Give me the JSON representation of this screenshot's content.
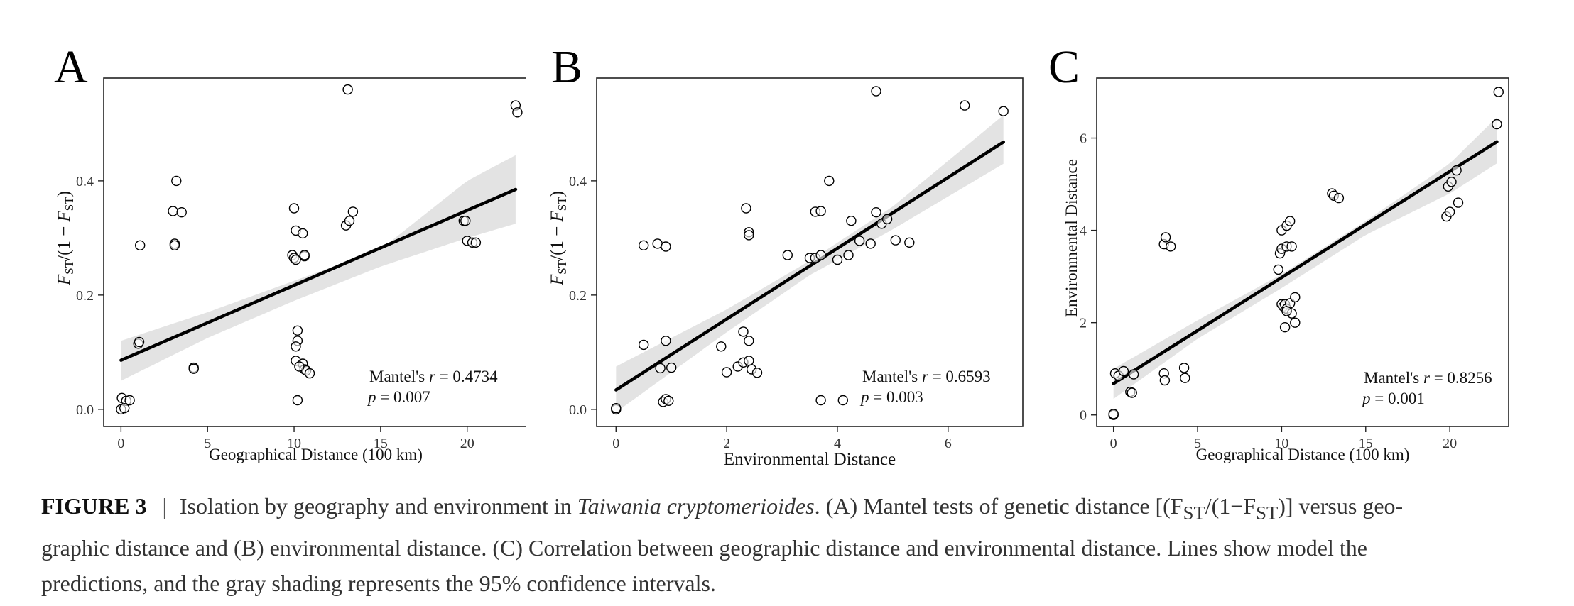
{
  "figure": {
    "panels": [
      {
        "letter": "A"
      },
      {
        "letter": "B"
      },
      {
        "letter": "C"
      }
    ]
  },
  "chart_data": [
    {
      "type": "scatter",
      "panel": "A",
      "xlabel": "Geographical Distance (100 km)",
      "ylabel": "F_ST/(1 − F_ST)",
      "xlim": [
        -1,
        23.5
      ],
      "ylim": [
        -0.03,
        0.58
      ],
      "xticks": [
        0,
        5,
        10,
        15,
        20
      ],
      "yticks": [
        0.0,
        0.2,
        0.4
      ],
      "ytick_labels": [
        "0.0",
        "0.2",
        "0.4"
      ],
      "grid": false,
      "annotation": {
        "line1_prefix": "Mantel's ",
        "line1_var": "r",
        "line1_value": " = 0.4734",
        "line2_var": "p",
        "line2_value": " = 0.007"
      },
      "fit": {
        "x": [
          0,
          22.8
        ],
        "y": [
          0.086,
          0.385
        ]
      },
      "ci_band": {
        "x": [
          0,
          5,
          10,
          15,
          20,
          22.8
        ],
        "lower": [
          0.05,
          0.125,
          0.19,
          0.25,
          0.3,
          0.325
        ],
        "upper": [
          0.12,
          0.17,
          0.225,
          0.28,
          0.4,
          0.445
        ]
      },
      "points": [
        [
          0,
          0.0
        ],
        [
          0.05,
          0.02
        ],
        [
          0.3,
          0.015
        ],
        [
          0.5,
          0.016
        ],
        [
          0.2,
          0.002
        ],
        [
          1.0,
          0.115
        ],
        [
          1.05,
          0.118
        ],
        [
          1.1,
          0.287
        ],
        [
          3.0,
          0.347
        ],
        [
          3.1,
          0.29
        ],
        [
          3.1,
          0.287
        ],
        [
          3.2,
          0.4
        ],
        [
          3.5,
          0.345
        ],
        [
          4.2,
          0.073
        ],
        [
          4.2,
          0.071
        ],
        [
          10.0,
          0.352
        ],
        [
          10.1,
          0.313
        ],
        [
          10.5,
          0.308
        ],
        [
          9.9,
          0.27
        ],
        [
          10.0,
          0.265
        ],
        [
          10.1,
          0.262
        ],
        [
          10.6,
          0.268
        ],
        [
          10.6,
          0.27
        ],
        [
          10.2,
          0.138
        ],
        [
          10.2,
          0.12
        ],
        [
          10.1,
          0.11
        ],
        [
          10.1,
          0.085
        ],
        [
          10.5,
          0.08
        ],
        [
          10.6,
          0.07
        ],
        [
          10.7,
          0.068
        ],
        [
          10.9,
          0.063
        ],
        [
          10.3,
          0.075
        ],
        [
          10.2,
          0.016
        ],
        [
          13.0,
          0.322
        ],
        [
          13.2,
          0.33
        ],
        [
          13.4,
          0.346
        ],
        [
          13.1,
          0.56
        ],
        [
          19.8,
          0.33
        ],
        [
          19.9,
          0.33
        ],
        [
          20.0,
          0.295
        ],
        [
          20.3,
          0.292
        ],
        [
          20.5,
          0.292
        ],
        [
          22.8,
          0.532
        ],
        [
          22.9,
          0.52
        ]
      ]
    },
    {
      "type": "scatter",
      "panel": "B",
      "xlabel": "Environmental Distance",
      "ylabel": "F_ST/(1 − F_ST)",
      "xlim": [
        -0.35,
        7.35
      ],
      "ylim": [
        -0.03,
        0.58
      ],
      "xticks": [
        0,
        2,
        4,
        6
      ],
      "yticks": [
        0.0,
        0.2,
        0.4
      ],
      "ytick_labels": [
        "0.0",
        "0.2",
        "0.4"
      ],
      "grid": false,
      "annotation": {
        "line1_prefix": "Mantel's ",
        "line1_var": "r",
        "line1_value": " = 0.6593",
        "line2_var": "p",
        "line2_value": " = 0.003"
      },
      "fit": {
        "x": [
          0,
          7.0
        ],
        "y": [
          0.034,
          0.468
        ]
      },
      "ci_band": {
        "x": [
          0,
          2,
          3.5,
          5,
          7.0
        ],
        "lower": [
          -0.005,
          0.135,
          0.235,
          0.315,
          0.43
        ],
        "upper": [
          0.075,
          0.175,
          0.26,
          0.355,
          0.515
        ]
      },
      "points": [
        [
          0,
          0.0
        ],
        [
          0,
          0.002
        ],
        [
          0.5,
          0.287
        ],
        [
          0.75,
          0.29
        ],
        [
          0.9,
          0.285
        ],
        [
          0.5,
          0.113
        ],
        [
          0.9,
          0.12
        ],
        [
          1.0,
          0.073
        ],
        [
          0.8,
          0.072
        ],
        [
          0.85,
          0.013
        ],
        [
          0.9,
          0.018
        ],
        [
          0.95,
          0.015
        ],
        [
          1.9,
          0.11
        ],
        [
          2.0,
          0.065
        ],
        [
          2.2,
          0.075
        ],
        [
          2.3,
          0.082
        ],
        [
          2.3,
          0.136
        ],
        [
          2.4,
          0.12
        ],
        [
          2.4,
          0.085
        ],
        [
          2.45,
          0.07
        ],
        [
          2.55,
          0.064
        ],
        [
          2.35,
          0.352
        ],
        [
          2.4,
          0.31
        ],
        [
          2.4,
          0.305
        ],
        [
          3.1,
          0.27
        ],
        [
          3.5,
          0.265
        ],
        [
          3.6,
          0.265
        ],
        [
          3.7,
          0.27
        ],
        [
          3.6,
          0.346
        ],
        [
          3.7,
          0.347
        ],
        [
          3.85,
          0.4
        ],
        [
          3.7,
          0.016
        ],
        [
          4.1,
          0.016
        ],
        [
          4.0,
          0.262
        ],
        [
          4.2,
          0.27
        ],
        [
          4.25,
          0.33
        ],
        [
          4.4,
          0.295
        ],
        [
          4.6,
          0.29
        ],
        [
          4.7,
          0.345
        ],
        [
          4.8,
          0.325
        ],
        [
          4.9,
          0.333
        ],
        [
          5.05,
          0.296
        ],
        [
          5.3,
          0.292
        ],
        [
          4.7,
          0.557
        ],
        [
          6.3,
          0.532
        ],
        [
          7.0,
          0.522
        ]
      ]
    },
    {
      "type": "scatter",
      "panel": "C",
      "xlabel": "Geographical Distance (100 km)",
      "ylabel": "Environmental Distance",
      "xlim": [
        -1,
        23.5
      ],
      "ylim": [
        -0.25,
        7.3
      ],
      "xticks": [
        0,
        5,
        10,
        15,
        20
      ],
      "yticks": [
        0,
        2,
        4,
        6
      ],
      "ytick_labels": [
        "0",
        "2",
        "4",
        "6"
      ],
      "grid": false,
      "annotation": {
        "line1_prefix": "Mantel's ",
        "line1_var": "r",
        "line1_value": " = 0.8256",
        "line2_var": "p",
        "line2_value": " = 0.001"
      },
      "fit": {
        "x": [
          0,
          22.8
        ],
        "y": [
          0.68,
          5.92
        ]
      },
      "ci_band": {
        "x": [
          0,
          5,
          10,
          15,
          20,
          22.8
        ],
        "lower": [
          0.35,
          1.65,
          2.75,
          3.9,
          4.8,
          5.45
        ],
        "upper": [
          1.0,
          2.05,
          3.05,
          4.2,
          5.45,
          6.45
        ]
      },
      "points": [
        [
          0,
          0.0
        ],
        [
          0,
          0.02
        ],
        [
          0.1,
          0.9
        ],
        [
          0.3,
          0.85
        ],
        [
          0.6,
          0.95
        ],
        [
          1.0,
          0.5
        ],
        [
          1.1,
          0.48
        ],
        [
          1.2,
          0.88
        ],
        [
          3.0,
          3.7
        ],
        [
          3.1,
          3.85
        ],
        [
          3.4,
          3.65
        ],
        [
          3.0,
          0.9
        ],
        [
          3.05,
          0.75
        ],
        [
          4.2,
          1.02
        ],
        [
          4.25,
          0.8
        ],
        [
          9.8,
          3.15
        ],
        [
          9.9,
          3.5
        ],
        [
          10.0,
          3.6
        ],
        [
          10.0,
          4.0
        ],
        [
          10.3,
          4.1
        ],
        [
          10.5,
          4.2
        ],
        [
          10.3,
          3.65
        ],
        [
          10.6,
          3.65
        ],
        [
          10.0,
          2.4
        ],
        [
          10.1,
          2.35
        ],
        [
          10.2,
          2.4
        ],
        [
          10.3,
          2.3
        ],
        [
          10.5,
          2.42
        ],
        [
          10.6,
          2.2
        ],
        [
          10.8,
          2.55
        ],
        [
          10.2,
          1.9
        ],
        [
          10.8,
          2.0
        ],
        [
          10.3,
          2.25
        ],
        [
          13.0,
          4.8
        ],
        [
          13.1,
          4.75
        ],
        [
          13.4,
          4.7
        ],
        [
          19.8,
          4.3
        ],
        [
          20.0,
          4.4
        ],
        [
          19.9,
          4.95
        ],
        [
          20.1,
          5.05
        ],
        [
          20.4,
          5.3
        ],
        [
          20.5,
          4.6
        ],
        [
          22.8,
          6.3
        ],
        [
          22.9,
          7.0
        ]
      ]
    }
  ],
  "caption": {
    "label": "FIGURE 3",
    "separator": "|",
    "text_1": "Isolation by geography and environment in ",
    "species": "Taiwania cryptomerioides",
    "text_2": ". (A) Mantel tests of genetic distance [(F",
    "sub_1": "ST",
    "text_3": "/(1−F",
    "sub_2": "ST",
    "text_4": ")] versus geo-",
    "line_2": "graphic distance and (B) environmental distance. (C) Correlation between geographic distance and environmental distance. Lines show model the",
    "line_3": "predictions, and the gray shading represents the 95% confidence intervals."
  }
}
